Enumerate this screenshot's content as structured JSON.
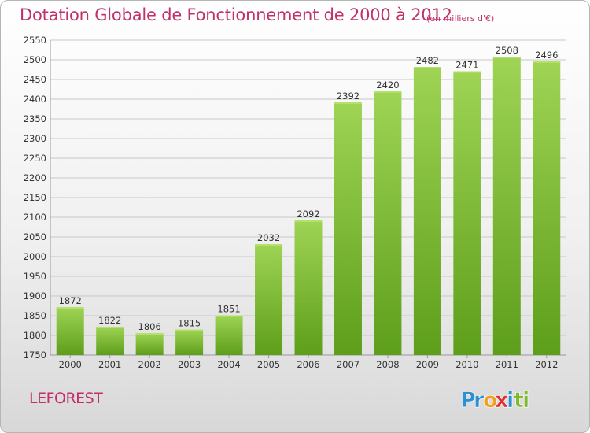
{
  "title": "Dotation Globale de Fonctionnement de 2000 à 2012",
  "unit": "(en milliers d'€)",
  "commune": "LEFOREST",
  "logo": {
    "letters": [
      {
        "ch": "P",
        "color": "#2f8fd0"
      },
      {
        "ch": "r",
        "color": "#2f8fd0"
      },
      {
        "ch": "o",
        "color": "#f0a020"
      },
      {
        "ch": "x",
        "color": "#e03030"
      },
      {
        "ch": "i",
        "color": "#2f8fd0"
      },
      {
        "ch": "t",
        "color": "#80b830"
      },
      {
        "ch": "i",
        "color": "#80b830"
      }
    ]
  },
  "chart_data": {
    "type": "bar",
    "categories": [
      "2000",
      "2001",
      "2002",
      "2003",
      "2004",
      "2005",
      "2006",
      "2007",
      "2008",
      "2009",
      "2010",
      "2011",
      "2012"
    ],
    "values": [
      1872,
      1822,
      1806,
      1815,
      1851,
      2032,
      2092,
      2392,
      2420,
      2482,
      2471,
      2508,
      2496
    ],
    "ylim": [
      1750,
      2550
    ],
    "yticks": [
      1750,
      1800,
      1850,
      1900,
      1950,
      2000,
      2050,
      2100,
      2150,
      2200,
      2250,
      2300,
      2350,
      2400,
      2450,
      2500,
      2550
    ],
    "grid": true,
    "bar_color": "#7cc03a"
  }
}
